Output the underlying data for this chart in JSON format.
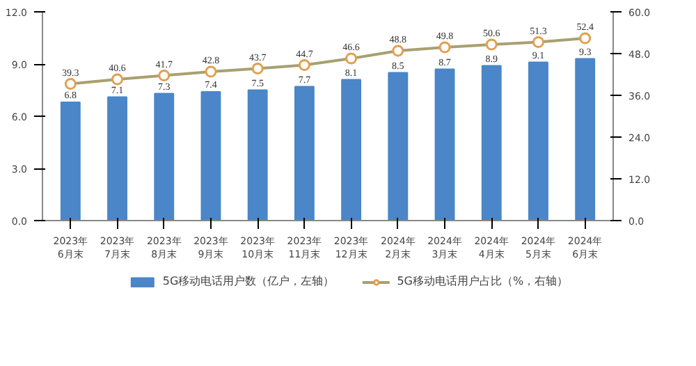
{
  "chart_data": {
    "type": "bar",
    "categories": [
      "2023年\n6月末",
      "2023年\n7月末",
      "2023年\n8月末",
      "2023年\n9月末",
      "2023年\n10月末",
      "2023年\n11月末",
      "2023年\n12月末",
      "2024年\n2月末",
      "2024年\n3月末",
      "2024年\n4月末",
      "2024年\n5月末",
      "2024年\n6月末"
    ],
    "series": [
      {
        "name": "5G移动电话用户数（亿户，左轴）",
        "color": "#4a86c8",
        "values": [
          6.8,
          7.1,
          7.3,
          7.4,
          7.5,
          7.7,
          8.1,
          8.5,
          8.7,
          8.9,
          9.1,
          9.3
        ]
      },
      {
        "name": "5G移动电话用户占比（%，右轴）",
        "type": "line",
        "axis": "y2",
        "color": "#a8a070",
        "marker": "circle",
        "values": [
          39.3,
          40.6,
          41.7,
          42.8,
          43.7,
          44.7,
          46.6,
          48.8,
          49.8,
          50.6,
          51.3,
          52.4
        ]
      }
    ],
    "ylim": [
      0,
      12
    ],
    "yticks": [
      {
        "value": 0,
        "label": "0.0"
      },
      {
        "value": 3,
        "label": "3.0"
      },
      {
        "value": 6,
        "label": "6.0"
      },
      {
        "value": 9,
        "label": "9.0"
      },
      {
        "value": 12,
        "label": "12.0"
      }
    ],
    "y2lim": [
      0,
      60
    ],
    "y2ticks": [
      {
        "value": 0,
        "label": "0.0"
      },
      {
        "value": 12,
        "label": "12.0"
      },
      {
        "value": 24,
        "label": "24.0"
      },
      {
        "value": 36,
        "label": "36.0"
      },
      {
        "value": 48,
        "label": "48.0"
      },
      {
        "value": 60,
        "label": "60.0"
      }
    ],
    "data_labels": true,
    "grid": false,
    "legend": "bottom"
  }
}
